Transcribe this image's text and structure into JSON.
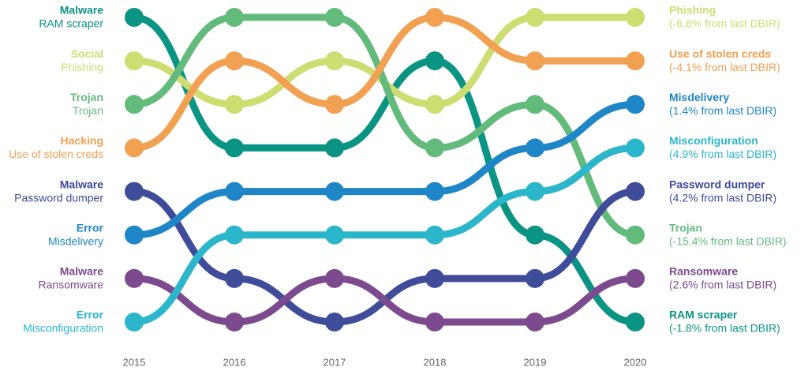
{
  "chart_data": {
    "type": "bump",
    "categories": [
      "2015",
      "2016",
      "2017",
      "2018",
      "2019",
      "2020"
    ],
    "ylim": [
      8,
      1
    ],
    "series": [
      {
        "name": "RAM scraper",
        "group": "Malware",
        "note": "(-1.8% from last DBIR)",
        "color": "#0a9484",
        "values": [
          1,
          4,
          4,
          2,
          6,
          8
        ]
      },
      {
        "name": "Phishing",
        "group": "Social",
        "note": "(-6.6% from last DBIR)",
        "color": "#cedd72",
        "values": [
          2,
          3,
          2,
          3,
          1,
          1
        ]
      },
      {
        "name": "Trojan",
        "group": "Trojan",
        "note": "(-15.4% from last DBIR)",
        "color": "#63bb7b",
        "values": [
          3,
          1,
          1,
          4,
          3,
          6
        ]
      },
      {
        "name": "Use of stolen creds",
        "group": "Hacking",
        "note": "(-4.1% from last DBIR)",
        "color": "#f2a052",
        "values": [
          4,
          2,
          3,
          1,
          2,
          2
        ]
      },
      {
        "name": "Password dumper",
        "group": "Malware",
        "note": "(4.2% from last DBIR)",
        "color": "#3e4c9a",
        "values": [
          5,
          7,
          8,
          7,
          7,
          5
        ]
      },
      {
        "name": "Misdelivery",
        "group": "Error",
        "note": "(1.4% from last DBIR)",
        "color": "#1e86c6",
        "values": [
          6,
          5,
          5,
          5,
          4,
          3
        ]
      },
      {
        "name": "Ransomware",
        "group": "Malware",
        "note": "(2.6% from last DBIR)",
        "color": "#7d4a8f",
        "values": [
          7,
          8,
          7,
          8,
          8,
          7
        ]
      },
      {
        "name": "Misconfiguration",
        "group": "Error",
        "note": "(4.9% from last DBIR)",
        "color": "#2bb6cc",
        "values": [
          8,
          6,
          6,
          6,
          5,
          4
        ]
      }
    ]
  }
}
